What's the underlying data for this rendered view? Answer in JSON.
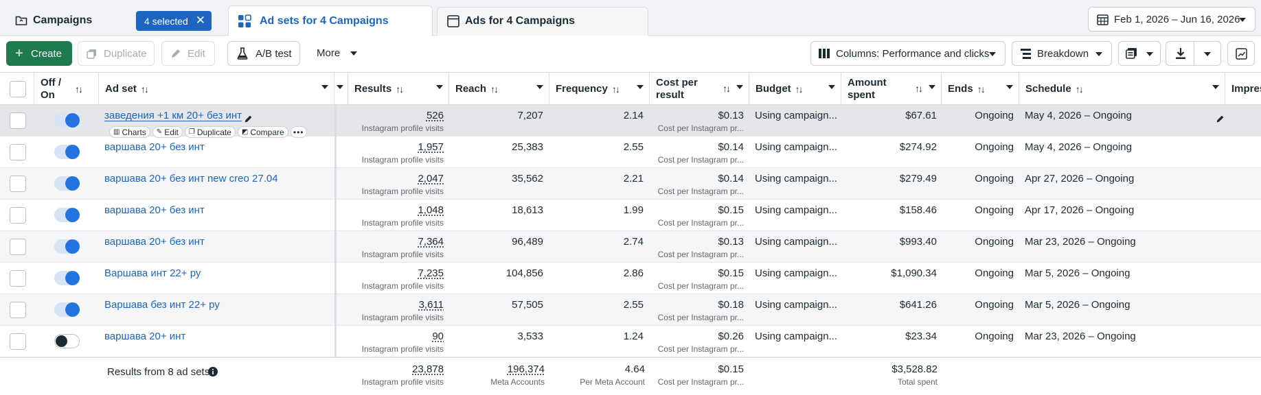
{
  "tabs": {
    "campaigns": {
      "label": "Campaigns",
      "selected_badge": "4 selected"
    },
    "adsets": {
      "label": "Ad sets for 4 Campaigns"
    },
    "ads": {
      "label": "Ads for 4 Campaigns"
    }
  },
  "date_range": "Feb 1, 2026 – Jun 16, 2026",
  "toolbar": {
    "create": "Create",
    "duplicate": "Duplicate",
    "edit": "Edit",
    "ab_test": "A/B test",
    "more": "More",
    "columns": "Columns: Performance and clicks",
    "breakdown": "Breakdown"
  },
  "columns": {
    "off_on": [
      "Off /",
      "On"
    ],
    "ad_set": "Ad set",
    "results": "Results",
    "reach": "Reach",
    "frequency": "Frequency",
    "cost_per_result": [
      "Cost per",
      "result"
    ],
    "budget": "Budget",
    "amount_spent": [
      "Amount",
      "spent"
    ],
    "ends": "Ends",
    "schedule": "Schedule",
    "impressions": "Impres"
  },
  "row_actions": {
    "charts": "Charts",
    "edit": "Edit",
    "duplicate": "Duplicate",
    "compare": "Compare"
  },
  "rows": [
    {
      "name": "заведения +1 км 20+ без инт",
      "on": true,
      "results": "526",
      "results_sub": "Instagram profile visits",
      "reach": "7,207",
      "frequency": "2.14",
      "cpr": "$0.13",
      "cpr_sub": "Cost per Instagram pr...",
      "budget": "Using campaign...",
      "spent": "$67.61",
      "ends": "Ongoing",
      "schedule": "May 4, 2026 – Ongoing"
    },
    {
      "name": "варшава 20+ без инт",
      "on": true,
      "results": "1,957",
      "results_sub": "Instagram profile visits",
      "reach": "25,383",
      "frequency": "2.55",
      "cpr": "$0.14",
      "cpr_sub": "Cost per Instagram pr...",
      "budget": "Using campaign...",
      "spent": "$274.92",
      "ends": "Ongoing",
      "schedule": "May 4, 2026 – Ongoing"
    },
    {
      "name": "варшава 20+ без инт new creo 27.04",
      "on": true,
      "results": "2,047",
      "results_sub": "Instagram profile visits",
      "reach": "35,562",
      "frequency": "2.21",
      "cpr": "$0.14",
      "cpr_sub": "Cost per Instagram pr...",
      "budget": "Using campaign...",
      "spent": "$279.49",
      "ends": "Ongoing",
      "schedule": "Apr 27, 2026 – Ongoing"
    },
    {
      "name": "варшава 20+ без инт",
      "on": true,
      "results": "1,048",
      "results_sub": "Instagram profile visits",
      "reach": "18,613",
      "frequency": "1.99",
      "cpr": "$0.15",
      "cpr_sub": "Cost per Instagram pr...",
      "budget": "Using campaign...",
      "spent": "$158.46",
      "ends": "Ongoing",
      "schedule": "Apr 17, 2026 – Ongoing"
    },
    {
      "name": "варшава 20+ без инт",
      "on": true,
      "results": "7,364",
      "results_sub": "Instagram profile visits",
      "reach": "96,489",
      "frequency": "2.74",
      "cpr": "$0.13",
      "cpr_sub": "Cost per Instagram pr...",
      "budget": "Using campaign...",
      "spent": "$993.40",
      "ends": "Ongoing",
      "schedule": "Mar 23, 2026 – Ongoing"
    },
    {
      "name": "Варшава инт 22+ ру",
      "on": true,
      "results": "7,235",
      "results_sub": "Instagram profile visits",
      "reach": "104,856",
      "frequency": "2.86",
      "cpr": "$0.15",
      "cpr_sub": "Cost per Instagram pr...",
      "budget": "Using campaign...",
      "spent": "$1,090.34",
      "ends": "Ongoing",
      "schedule": "Mar 5, 2026 – Ongoing"
    },
    {
      "name": "Варшава без инт 22+ ру",
      "on": true,
      "results": "3,611",
      "results_sub": "Instagram profile visits",
      "reach": "57,505",
      "frequency": "2.55",
      "cpr": "$0.18",
      "cpr_sub": "Cost per Instagram pr...",
      "budget": "Using campaign...",
      "spent": "$641.26",
      "ends": "Ongoing",
      "schedule": "Mar 5, 2026 – Ongoing"
    },
    {
      "name": "варшава 20+ инт",
      "on": false,
      "results": "90",
      "results_sub": "Instagram profile visits",
      "reach": "3,533",
      "frequency": "1.24",
      "cpr": "$0.26",
      "cpr_sub": "Cost per Instagram pr...",
      "budget": "Using campaign...",
      "spent": "$23.34",
      "ends": "Ongoing",
      "schedule": "Mar 23, 2026 – Ongoing"
    }
  ],
  "totals": {
    "label": "Results from 8 ad sets",
    "results": "23,878",
    "results_sub": "Instagram profile visits",
    "reach": "196,374",
    "reach_sub": "Meta Accounts",
    "frequency": "4.64",
    "frequency_sub": "Per Meta Account",
    "cpr": "$0.15",
    "cpr_sub": "Cost per Instagram pr...",
    "spent": "$3,528.82",
    "spent_sub": "Total spent"
  },
  "colors": {
    "primary_green": "#1f7a4d",
    "link_blue": "#1d65c1",
    "toggle_blue": "#2374e1"
  }
}
